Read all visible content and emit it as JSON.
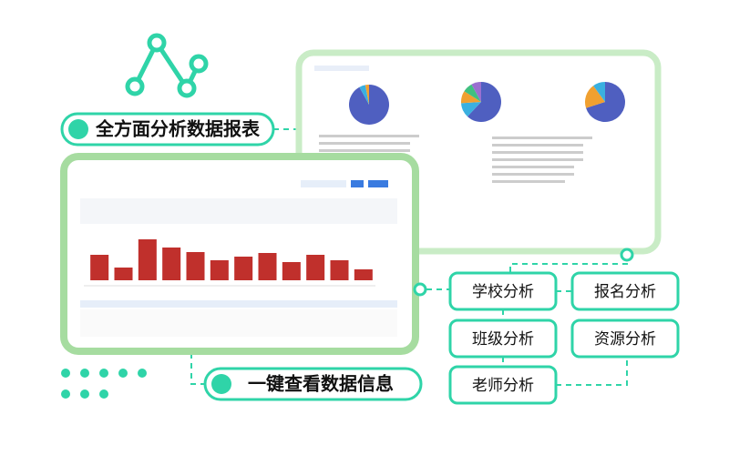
{
  "headline_top": "全方面分析数据报表",
  "headline_bottom": "一键查看数据信息",
  "buttons": [
    "学校分析",
    "报名分析",
    "班级分析",
    "资源分析",
    "老师分析"
  ],
  "bar_chart": {
    "type": "bar",
    "color": "#c0302c",
    "ylim": [
      0,
      50
    ],
    "values": [
      28,
      14,
      45,
      36,
      31,
      22,
      26,
      30,
      20,
      28,
      22,
      12
    ]
  },
  "pies": [
    {
      "type": "pie",
      "values": [
        92,
        5,
        3
      ],
      "colors": [
        "#4f5fc0",
        "#3ab0e0",
        "#f0a030"
      ]
    },
    {
      "type": "pie",
      "values": [
        62,
        12,
        10,
        8,
        8
      ],
      "colors": [
        "#4f5fc0",
        "#3ab0e0",
        "#f0a030",
        "#40c080",
        "#9a6fd0"
      ]
    },
    {
      "type": "pie",
      "values": [
        70,
        20,
        10
      ],
      "colors": [
        "#4f5fc0",
        "#f0a030",
        "#3ab0e0"
      ]
    }
  ]
}
